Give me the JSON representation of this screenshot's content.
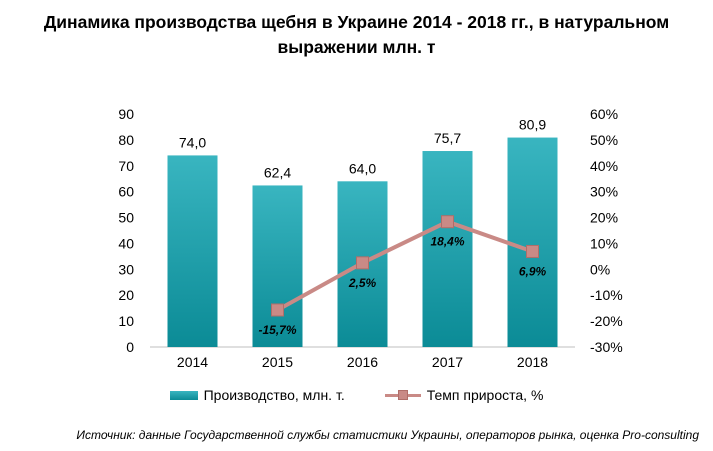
{
  "title_line1": "Динамика производства щебня в Украине 2014 - 2018 гг., в натуральном",
  "title_line2": "выражении млн. т",
  "source": "Источник: данные Государственной службы статистики Украины, операторов рынка, оценка Pro-consulting",
  "colors": {
    "bar_top": "#39b5c0",
    "bar_bottom": "#0b8b96",
    "line": "#c98a86",
    "marker_border": "#b06e69"
  },
  "chart_data": {
    "type": "bar",
    "categories": [
      "2014",
      "2015",
      "2016",
      "2017",
      "2018"
    ],
    "series": [
      {
        "name": "Производство, млн. т.",
        "type": "bar",
        "axis": "left",
        "values": [
          74.0,
          62.4,
          64.0,
          75.7,
          80.9
        ],
        "labels": [
          "74,0",
          "62,4",
          "64,0",
          "75,7",
          "80,9"
        ]
      },
      {
        "name": "Темп прироста, %",
        "type": "line",
        "axis": "right",
        "values": [
          null,
          -15.7,
          2.5,
          18.4,
          6.9
        ],
        "labels": [
          "",
          "-15,7%",
          "2,5%",
          "18,4%",
          "6,9%"
        ]
      }
    ],
    "ylim": [
      0,
      90
    ],
    "yticks": [
      "0",
      "10",
      "20",
      "30",
      "40",
      "50",
      "60",
      "70",
      "80",
      "90"
    ],
    "y2lim": [
      -30,
      60
    ],
    "y2ticks": [
      "-30%",
      "-20%",
      "-10%",
      "0%",
      "10%",
      "20%",
      "30%",
      "40%",
      "50%",
      "60%"
    ],
    "legend_position": "bottom",
    "grid": false
  }
}
